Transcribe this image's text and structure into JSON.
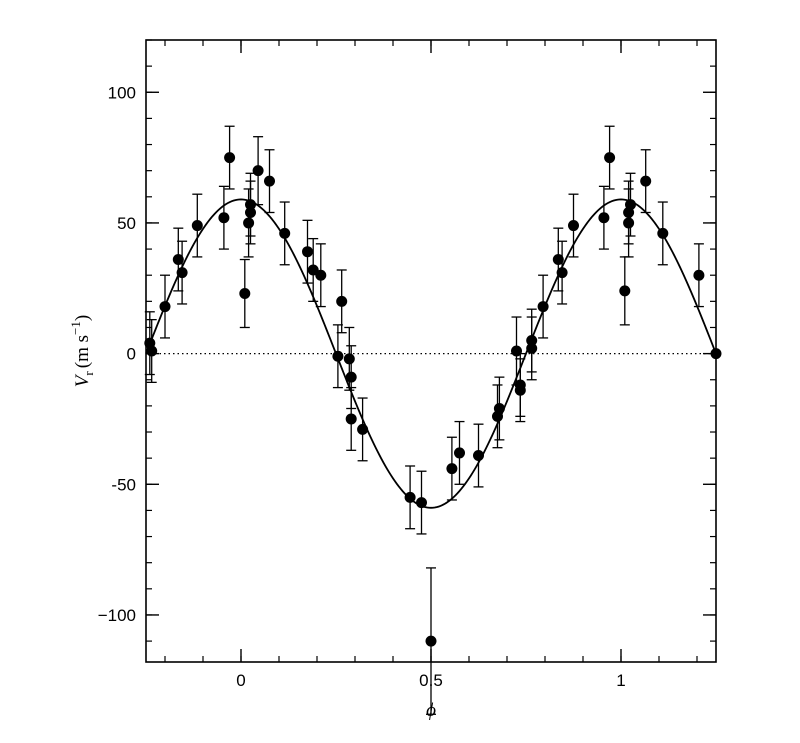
{
  "chart_data": {
    "type": "scatter",
    "title": "",
    "xlabel": "ϕ",
    "ylabel_main": "V",
    "ylabel_sub": "r",
    "ylabel_units": "(m s",
    "ylabel_sup": "−1",
    "ylabel_close": ")",
    "xlim": [
      -0.25,
      1.25
    ],
    "ylim": [
      -118,
      120
    ],
    "xticks": [
      {
        "value": 0,
        "label": "0"
      },
      {
        "value": 0.5,
        "label": "0.5"
      },
      {
        "value": 1,
        "label": "1"
      }
    ],
    "yticks": [
      {
        "value": 100,
        "label": "100"
      },
      {
        "value": 50,
        "label": "50"
      },
      {
        "value": 0,
        "label": "0"
      },
      {
        "value": -50,
        "label": "-50"
      },
      {
        "value": -100,
        "label": "−100"
      }
    ],
    "x_minor_step": 0.1,
    "y_minor_step": 10,
    "fit_curve": {
      "amplitude": 59,
      "period": 1.0,
      "zero_crossing_phase": 0.25,
      "description": "V = -A sin(2π(ϕ-0.25))"
    },
    "zero_line": {
      "y": 0,
      "style": "dotted"
    },
    "points": [
      {
        "x": -0.24,
        "y": 4,
        "err": 12
      },
      {
        "x": -0.235,
        "y": 1,
        "err": 12
      },
      {
        "x": -0.2,
        "y": 18,
        "err": 12
      },
      {
        "x": -0.165,
        "y": 36,
        "err": 12
      },
      {
        "x": -0.155,
        "y": 31,
        "err": 12
      },
      {
        "x": -0.115,
        "y": 49,
        "err": 12
      },
      {
        "x": -0.045,
        "y": 52,
        "err": 12
      },
      {
        "x": -0.03,
        "y": 75,
        "err": 12
      },
      {
        "x": 0.01,
        "y": 23,
        "err": 13
      },
      {
        "x": 0.02,
        "y": 50,
        "err": 13
      },
      {
        "x": 0.025,
        "y": 54,
        "err": 12
      },
      {
        "x": 0.025,
        "y": 57,
        "err": 12
      },
      {
        "x": 0.045,
        "y": 70,
        "err": 13
      },
      {
        "x": 0.075,
        "y": 66,
        "err": 12
      },
      {
        "x": 0.115,
        "y": 46,
        "err": 12
      },
      {
        "x": 0.175,
        "y": 39,
        "err": 12
      },
      {
        "x": 0.19,
        "y": 32,
        "err": 12
      },
      {
        "x": 0.21,
        "y": 30,
        "err": 12
      },
      {
        "x": 0.255,
        "y": -1,
        "err": 12
      },
      {
        "x": 0.265,
        "y": 20,
        "err": 12
      },
      {
        "x": 0.285,
        "y": -2,
        "err": 12
      },
      {
        "x": 0.29,
        "y": -9,
        "err": 12
      },
      {
        "x": 0.29,
        "y": -25,
        "err": 12
      },
      {
        "x": 0.32,
        "y": -29,
        "err": 12
      },
      {
        "x": 0.445,
        "y": -55,
        "err": 12
      },
      {
        "x": 0.475,
        "y": -57,
        "err": 12
      },
      {
        "x": 0.5,
        "y": -110,
        "err": 28
      },
      {
        "x": 0.555,
        "y": -44,
        "err": 12
      },
      {
        "x": 0.575,
        "y": -38,
        "err": 12
      },
      {
        "x": 0.625,
        "y": -39,
        "err": 12
      },
      {
        "x": 0.675,
        "y": -24,
        "err": 12
      },
      {
        "x": 0.68,
        "y": -21,
        "err": 12
      },
      {
        "x": 0.725,
        "y": 1,
        "err": 13
      },
      {
        "x": 0.735,
        "y": -12,
        "err": 12
      },
      {
        "x": 0.735,
        "y": -14,
        "err": 12
      },
      {
        "x": 0.765,
        "y": 5,
        "err": 12
      },
      {
        "x": 0.765,
        "y": 2,
        "err": 12
      },
      {
        "x": 0.795,
        "y": 18,
        "err": 12
      },
      {
        "x": 0.835,
        "y": 36,
        "err": 12
      },
      {
        "x": 0.845,
        "y": 31,
        "err": 12
      },
      {
        "x": 0.875,
        "y": 49,
        "err": 12
      },
      {
        "x": 0.955,
        "y": 52,
        "err": 12
      },
      {
        "x": 0.97,
        "y": 75,
        "err": 12
      },
      {
        "x": 1.01,
        "y": 24,
        "err": 13
      },
      {
        "x": 1.02,
        "y": 50,
        "err": 13
      },
      {
        "x": 1.02,
        "y": 54,
        "err": 12
      },
      {
        "x": 1.025,
        "y": 57,
        "err": 12
      },
      {
        "x": 1.065,
        "y": 66,
        "err": 12
      },
      {
        "x": 1.11,
        "y": 46,
        "err": 12
      },
      {
        "x": 1.205,
        "y": 30,
        "err": 12
      },
      {
        "x": 1.25,
        "y": 0,
        "err": 0
      }
    ]
  }
}
